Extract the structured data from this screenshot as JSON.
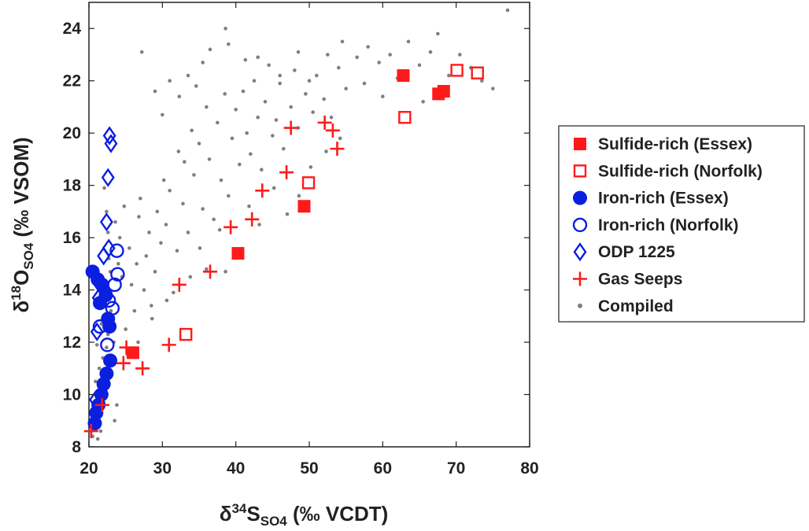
{
  "chart_data": {
    "type": "scatter",
    "xlabel": {
      "prefix": "δ",
      "sup": "34",
      "main": "S",
      "sub": "SO4",
      "suffix": " (‰ VCDT)"
    },
    "ylabel": {
      "prefix": "δ",
      "sup": "18",
      "main": "O",
      "sub": "SO4",
      "suffix": " (‰ VSOM)"
    },
    "xlim": [
      20,
      80
    ],
    "ylim": [
      8,
      25
    ],
    "xticks": [
      20,
      30,
      40,
      50,
      60,
      70,
      80
    ],
    "yticks": [
      8,
      10,
      12,
      14,
      16,
      18,
      20,
      22,
      24
    ],
    "legend_position": "outside-right",
    "series": [
      {
        "name": "Compiled",
        "marker": "dot",
        "color": "#7f7f7f",
        "points": [
          [
            20.5,
            8.4
          ],
          [
            20.8,
            8.8
          ],
          [
            21.0,
            9.1
          ],
          [
            21.2,
            8.3
          ],
          [
            21.3,
            9.5
          ],
          [
            21.5,
            9.9
          ],
          [
            21.6,
            8.6
          ],
          [
            21.8,
            10.2
          ],
          [
            22.0,
            9.7
          ],
          [
            22.1,
            10.6
          ],
          [
            21.4,
            11.0
          ],
          [
            21.9,
            11.4
          ],
          [
            22.3,
            10.9
          ],
          [
            22.4,
            11.8
          ],
          [
            22.6,
            12.3
          ],
          [
            21.7,
            12.7
          ],
          [
            22.8,
            13.1
          ],
          [
            22.2,
            13.6
          ],
          [
            23.0,
            13.2
          ],
          [
            22.5,
            14.0
          ],
          [
            21.2,
            14.4
          ],
          [
            22.9,
            14.7
          ],
          [
            23.2,
            12.5
          ],
          [
            22.7,
            15.2
          ],
          [
            23.4,
            12.0
          ],
          [
            20.9,
            10.5
          ],
          [
            21.1,
            11.9
          ],
          [
            22.0,
            12.9
          ],
          [
            20.7,
            9.3
          ],
          [
            21.6,
            13.3
          ],
          [
            23.5,
            9.0
          ],
          [
            23.8,
            9.6
          ],
          [
            22.6,
            16.2
          ],
          [
            22.4,
            17.0
          ],
          [
            22.1,
            17.9
          ],
          [
            23.6,
            16.6
          ],
          [
            24.0,
            15.0
          ],
          [
            24.5,
            14.5
          ],
          [
            24.2,
            16.0
          ],
          [
            24.8,
            17.2
          ],
          [
            25.0,
            12.5
          ],
          [
            25.5,
            15.6
          ],
          [
            25.8,
            14.2
          ],
          [
            26.2,
            13.2
          ],
          [
            26.5,
            15.0
          ],
          [
            26.8,
            16.8
          ],
          [
            27.0,
            17.5
          ],
          [
            27.5,
            14.0
          ],
          [
            27.8,
            15.3
          ],
          [
            28.2,
            16.2
          ],
          [
            28.5,
            13.4
          ],
          [
            29.0,
            14.7
          ],
          [
            29.3,
            17.0
          ],
          [
            29.8,
            15.8
          ],
          [
            30.2,
            18.2
          ],
          [
            30.5,
            16.5
          ],
          [
            31.0,
            17.8
          ],
          [
            31.5,
            13.9
          ],
          [
            32.0,
            15.5
          ],
          [
            32.2,
            19.3
          ],
          [
            32.8,
            17.3
          ],
          [
            33.0,
            18.9
          ],
          [
            33.5,
            16.2
          ],
          [
            34.0,
            20.1
          ],
          [
            34.3,
            18.4
          ],
          [
            35.0,
            19.6
          ],
          [
            35.5,
            17.1
          ],
          [
            36.0,
            21.0
          ],
          [
            36.4,
            19.0
          ],
          [
            37.0,
            16.7
          ],
          [
            37.5,
            20.4
          ],
          [
            38.0,
            18.2
          ],
          [
            38.5,
            21.5
          ],
          [
            39.0,
            17.6
          ],
          [
            39.5,
            19.8
          ],
          [
            40.0,
            20.9
          ],
          [
            40.5,
            18.8
          ],
          [
            41.0,
            21.6
          ],
          [
            41.5,
            20.0
          ],
          [
            42.0,
            19.2
          ],
          [
            42.5,
            22.0
          ],
          [
            43.0,
            20.6
          ],
          [
            43.5,
            18.6
          ],
          [
            44.0,
            21.2
          ],
          [
            45.0,
            19.9
          ],
          [
            45.5,
            20.5
          ],
          [
            46.0,
            21.9
          ],
          [
            46.5,
            19.4
          ],
          [
            47.5,
            21.0
          ],
          [
            48.0,
            22.4
          ],
          [
            48.5,
            20.2
          ],
          [
            49.5,
            21.5
          ],
          [
            50.5,
            20.8
          ],
          [
            51.0,
            22.2
          ],
          [
            52.0,
            21.3
          ],
          [
            53.0,
            20.6
          ],
          [
            54.0,
            22.5
          ],
          [
            55.0,
            21.7
          ],
          [
            56.5,
            22.9
          ],
          [
            58.0,
            23.3
          ],
          [
            59.5,
            22.7
          ],
          [
            61.0,
            23.0
          ],
          [
            62.0,
            22.1
          ],
          [
            63.5,
            23.5
          ],
          [
            65.0,
            22.6
          ],
          [
            66.5,
            23.1
          ],
          [
            67.5,
            23.8
          ],
          [
            69.0,
            22.2
          ],
          [
            70.5,
            23.0
          ],
          [
            72.0,
            22.5
          ],
          [
            73.5,
            22.0
          ],
          [
            75.0,
            21.7
          ],
          [
            77.0,
            24.7
          ],
          [
            27.2,
            23.1
          ],
          [
            29.0,
            21.6
          ],
          [
            30.0,
            20.7
          ],
          [
            31.0,
            22.0
          ],
          [
            32.3,
            21.4
          ],
          [
            33.5,
            22.2
          ],
          [
            34.6,
            21.8
          ],
          [
            35.5,
            22.7
          ],
          [
            36.5,
            23.2
          ],
          [
            38.6,
            24.0
          ],
          [
            39.0,
            23.4
          ],
          [
            41.3,
            22.8
          ],
          [
            43.0,
            22.9
          ],
          [
            44.5,
            22.6
          ],
          [
            46.0,
            22.2
          ],
          [
            48.5,
            23.1
          ],
          [
            50.0,
            22.0
          ],
          [
            52.5,
            23.0
          ],
          [
            54.5,
            23.5
          ],
          [
            57.5,
            21.9
          ],
          [
            60.0,
            21.4
          ],
          [
            65.5,
            21.2
          ],
          [
            36.0,
            14.8
          ],
          [
            37.8,
            16.3
          ],
          [
            38.6,
            14.7
          ],
          [
            40.3,
            15.5
          ],
          [
            41.8,
            17.2
          ],
          [
            43.2,
            16.5
          ],
          [
            45.2,
            17.9
          ],
          [
            47.0,
            16.9
          ],
          [
            48.6,
            17.6
          ],
          [
            50.2,
            18.7
          ],
          [
            52.3,
            19.3
          ],
          [
            54.2,
            19.8
          ],
          [
            25.3,
            11.5
          ],
          [
            26.7,
            12.0
          ],
          [
            28.6,
            12.9
          ],
          [
            30.6,
            13.6
          ],
          [
            33.8,
            14.5
          ],
          [
            35.1,
            15.6
          ]
        ]
      },
      {
        "name": "Sulfide-rich (Essex)",
        "marker": "square-filled",
        "color": "#ff1a1a",
        "points": [
          [
            26.0,
            11.6
          ],
          [
            40.3,
            15.4
          ],
          [
            49.3,
            17.2
          ],
          [
            62.8,
            22.2
          ],
          [
            67.6,
            21.5
          ],
          [
            68.3,
            21.6
          ]
        ]
      },
      {
        "name": "Sulfide-rich (Norfolk)",
        "marker": "square-open",
        "color": "#ff1a1a",
        "points": [
          [
            33.2,
            12.3
          ],
          [
            49.9,
            18.1
          ],
          [
            63.0,
            20.6
          ],
          [
            70.1,
            22.4
          ],
          [
            72.9,
            22.3
          ]
        ]
      },
      {
        "name": "Iron-rich (Essex)",
        "marker": "circle-filled",
        "color": "#0a1fe0",
        "points": [
          [
            20.5,
            14.7
          ],
          [
            21.2,
            14.4
          ],
          [
            21.8,
            14.2
          ],
          [
            22.3,
            13.8
          ],
          [
            22.6,
            12.9
          ],
          [
            22.8,
            12.6
          ],
          [
            22.9,
            11.3
          ],
          [
            22.4,
            10.8
          ],
          [
            22.0,
            10.4
          ],
          [
            21.7,
            10.0
          ],
          [
            21.3,
            9.6
          ],
          [
            21.0,
            9.3
          ],
          [
            20.8,
            8.9
          ],
          [
            21.5,
            13.5
          ]
        ]
      },
      {
        "name": "Iron-rich (Norfolk)",
        "marker": "circle-open",
        "color": "#0a1fe0",
        "points": [
          [
            23.8,
            15.5
          ],
          [
            23.9,
            14.6
          ],
          [
            23.5,
            14.2
          ],
          [
            23.2,
            13.3
          ],
          [
            22.5,
            11.9
          ],
          [
            22.7,
            13.6
          ],
          [
            21.5,
            12.6
          ]
        ]
      },
      {
        "name": "ODP 1225",
        "marker": "diamond-open",
        "color": "#0a1fe0",
        "points": [
          [
            22.8,
            19.9
          ],
          [
            23.0,
            19.6
          ],
          [
            22.6,
            18.3
          ],
          [
            22.4,
            16.6
          ],
          [
            22.7,
            15.6
          ],
          [
            22.0,
            15.3
          ],
          [
            21.5,
            14.2
          ],
          [
            21.3,
            13.7
          ],
          [
            21.1,
            12.4
          ],
          [
            20.9,
            9.8
          ]
        ]
      },
      {
        "name": "Gas Seeps",
        "marker": "plus",
        "color": "#ff1a1a",
        "points": [
          [
            20.3,
            8.6
          ],
          [
            21.8,
            9.6
          ],
          [
            24.7,
            11.2
          ],
          [
            25.1,
            11.8
          ],
          [
            27.3,
            11.0
          ],
          [
            30.9,
            11.9
          ],
          [
            32.3,
            14.2
          ],
          [
            36.5,
            14.7
          ],
          [
            39.3,
            16.4
          ],
          [
            42.2,
            16.7
          ],
          [
            43.6,
            17.8
          ],
          [
            46.9,
            18.5
          ],
          [
            47.5,
            20.2
          ],
          [
            52.1,
            20.4
          ],
          [
            53.2,
            20.1
          ],
          [
            53.8,
            19.4
          ]
        ]
      }
    ],
    "legend": [
      {
        "label": "Sulfide-rich (Essex)",
        "marker": "square-filled",
        "color": "#ff1a1a"
      },
      {
        "label": "Sulfide-rich (Norfolk)",
        "marker": "square-open",
        "color": "#ff1a1a"
      },
      {
        "label": "Iron-rich (Essex)",
        "marker": "circle-filled",
        "color": "#0a1fe0"
      },
      {
        "label": "Iron-rich (Norfolk)",
        "marker": "circle-open",
        "color": "#0a1fe0"
      },
      {
        "label": "ODP 1225",
        "marker": "diamond-open",
        "color": "#0a1fe0"
      },
      {
        "label": "Gas Seeps",
        "marker": "plus",
        "color": "#ff1a1a"
      },
      {
        "label": "Compiled",
        "marker": "dot",
        "color": "#7f7f7f"
      }
    ]
  }
}
